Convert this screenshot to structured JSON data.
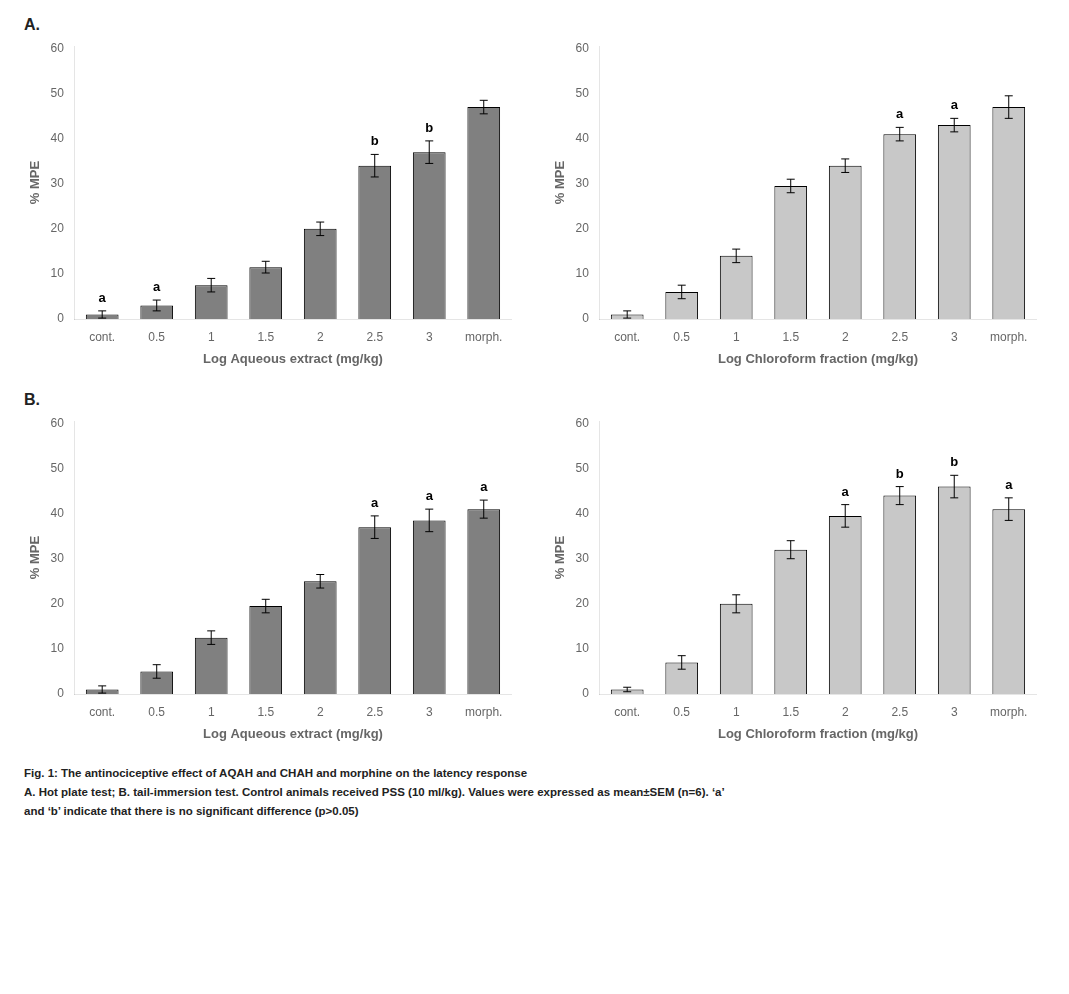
{
  "chart_data": [
    {
      "type": "bar",
      "panel_label": "A.",
      "categories": [
        "cont.",
        "0.5",
        "1",
        "1.5",
        "2",
        "2.5",
        "3",
        "morph."
      ],
      "values": [
        1.0,
        3.0,
        7.5,
        11.5,
        20.0,
        34.0,
        37.0,
        47.0
      ],
      "errors": [
        0.8,
        1.2,
        1.5,
        1.3,
        1.5,
        2.5,
        2.5,
        1.5
      ],
      "color": "#808080",
      "xlabel": "Log Aqueous extract (mg/kg)",
      "ylabel": "% MPE",
      "ylim": [
        0,
        60.5
      ],
      "yticks": [
        0,
        10,
        20,
        30,
        40,
        50,
        60
      ],
      "grid": false,
      "annotations": [
        {
          "category": "cont.",
          "text": "a"
        },
        {
          "category": "0.5",
          "text": "a"
        },
        {
          "category": "2.5",
          "text": "b"
        },
        {
          "category": "3",
          "text": "b"
        }
      ]
    },
    {
      "type": "bar",
      "categories": [
        "cont.",
        "0.5",
        "1",
        "1.5",
        "2",
        "2.5",
        "3",
        "morph."
      ],
      "values": [
        1.0,
        6.0,
        14.0,
        29.5,
        34.0,
        41.0,
        43.0,
        47.0
      ],
      "errors": [
        0.8,
        1.5,
        1.5,
        1.5,
        1.5,
        1.5,
        1.5,
        2.5
      ],
      "color": "#c8c8c8",
      "xlabel": "Log Chloroform fraction (mg/kg)",
      "ylabel": "% MPE",
      "ylim": [
        0,
        60.5
      ],
      "yticks": [
        0,
        10,
        20,
        30,
        40,
        50,
        60
      ],
      "grid": false,
      "annotations": [
        {
          "category": "2.5",
          "text": "a"
        },
        {
          "category": "3",
          "text": "a"
        }
      ]
    },
    {
      "type": "bar",
      "panel_label": "B.",
      "categories": [
        "cont.",
        "0.5",
        "1",
        "1.5",
        "2",
        "2.5",
        "3",
        "morph."
      ],
      "values": [
        1.0,
        5.0,
        12.5,
        19.5,
        25.0,
        37.0,
        38.5,
        41.0
      ],
      "errors": [
        0.8,
        1.5,
        1.5,
        1.5,
        1.5,
        2.5,
        2.5,
        2.0
      ],
      "color": "#808080",
      "xlabel": "Log Aqueous extract (mg/kg)",
      "ylabel": "% MPE",
      "ylim": [
        0,
        60.5
      ],
      "yticks": [
        0,
        10,
        20,
        30,
        40,
        50,
        60
      ],
      "grid": false,
      "annotations": [
        {
          "category": "2.5",
          "text": "a"
        },
        {
          "category": "3",
          "text": "a"
        },
        {
          "category": "morph.",
          "text": "a"
        }
      ]
    },
    {
      "type": "bar",
      "categories": [
        "cont.",
        "0.5",
        "1",
        "1.5",
        "2",
        "2.5",
        "3",
        "morph."
      ],
      "values": [
        1.0,
        7.0,
        20.0,
        32.0,
        39.5,
        44.0,
        46.0,
        41.0
      ],
      "errors": [
        0.5,
        1.5,
        2.0,
        2.0,
        2.5,
        2.0,
        2.5,
        2.5
      ],
      "color": "#c8c8c8",
      "xlabel": "Log Chloroform fraction (mg/kg)",
      "ylabel": "% MPE",
      "ylim": [
        0,
        60.5
      ],
      "yticks": [
        0,
        10,
        20,
        30,
        40,
        50,
        60
      ],
      "grid": false,
      "annotations": [
        {
          "category": "2",
          "text": "a"
        },
        {
          "category": "2.5",
          "text": "b"
        },
        {
          "category": "3",
          "text": "b"
        },
        {
          "category": "morph.",
          "text": "a"
        }
      ]
    }
  ],
  "caption": [
    "Fig. 1: The antinociceptive effect of AQAH and CHAH and morphine on the latency response",
    "A. Hot plate test; B. tail-immersion test. Control animals received PSS (10 ml/kg). Values were expressed as mean±SEM (n=6). ‘a’",
    "and ‘b’ indicate that there is no significant difference (p>0.05)"
  ]
}
